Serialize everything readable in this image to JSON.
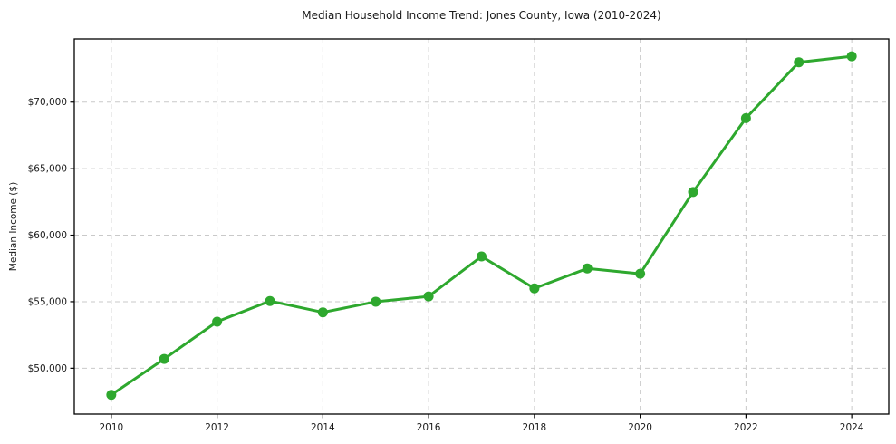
{
  "chart_data": {
    "type": "line",
    "title": "Median Household Income Trend: Jones County, Iowa (2010-2024)",
    "xlabel": "",
    "ylabel": "Median Income ($)",
    "x": [
      2010,
      2011,
      2012,
      2013,
      2014,
      2015,
      2016,
      2017,
      2018,
      2019,
      2020,
      2021,
      2022,
      2023,
      2024
    ],
    "series": [
      {
        "name": "Median Household Income",
        "values": [
          48000,
          50700,
          53500,
          55050,
          54200,
          55000,
          55400,
          58400,
          56000,
          57500,
          57100,
          63250,
          68800,
          73000,
          73450
        ]
      }
    ],
    "xlim": [
      2009.3,
      2024.7
    ],
    "ylim": [
      46550,
      74750
    ],
    "xticks": [
      {
        "v": 2010,
        "label": "2010"
      },
      {
        "v": 2012,
        "label": "2012"
      },
      {
        "v": 2014,
        "label": "2014"
      },
      {
        "v": 2016,
        "label": "2016"
      },
      {
        "v": 2018,
        "label": "2018"
      },
      {
        "v": 2020,
        "label": "2020"
      },
      {
        "v": 2022,
        "label": "2022"
      },
      {
        "v": 2024,
        "label": "2024"
      }
    ],
    "yticks": [
      {
        "v": 50000,
        "label": "$50,000"
      },
      {
        "v": 55000,
        "label": "$55,000"
      },
      {
        "v": 60000,
        "label": "$60,000"
      },
      {
        "v": 65000,
        "label": "$65,000"
      },
      {
        "v": 70000,
        "label": "$70,000"
      }
    ],
    "grid": true,
    "grid_style": "dashed",
    "legend": "none",
    "marker": "circle",
    "colors": {
      "line": "#2EA82E",
      "grid": "#c9c9c9",
      "axis": "#000000",
      "text": "#1a1a1a",
      "background": "#ffffff"
    },
    "line_width": 3,
    "marker_size": 11
  }
}
